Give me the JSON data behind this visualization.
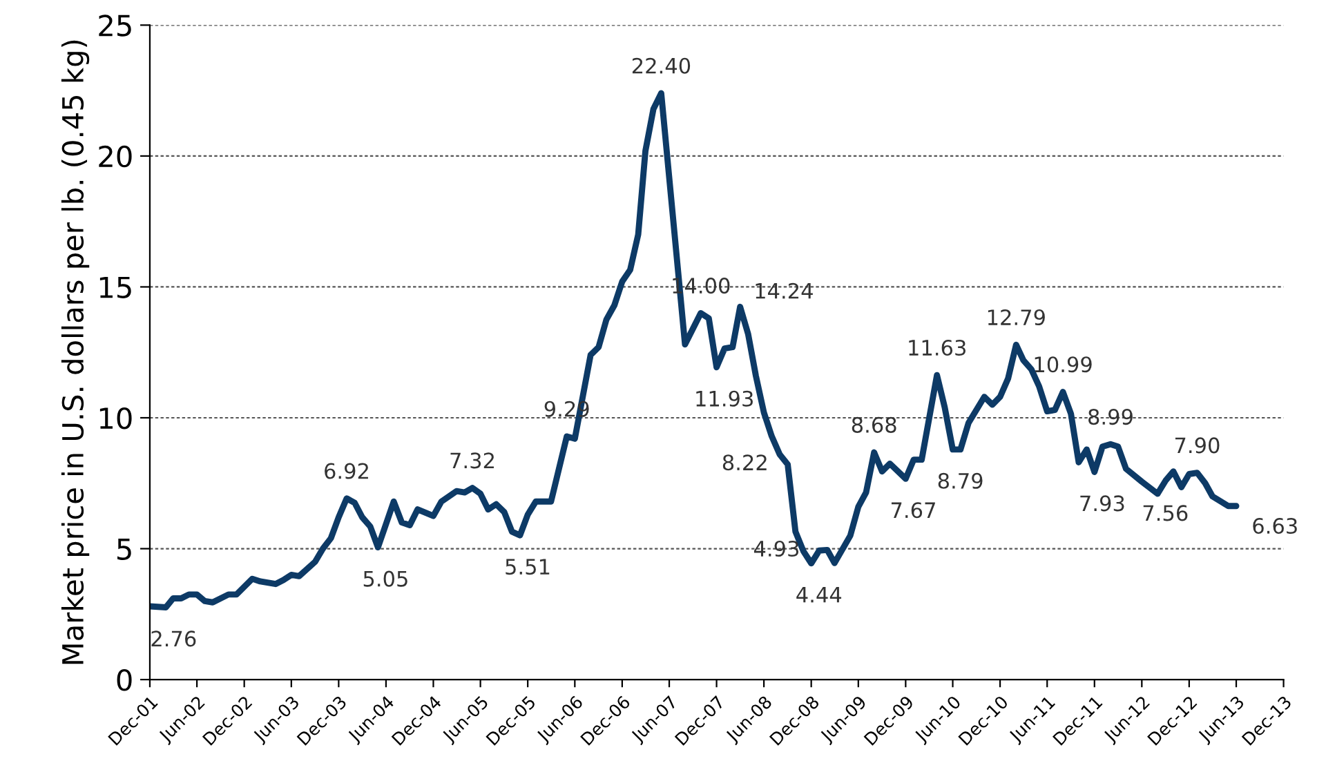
{
  "chart_data": {
    "type": "line",
    "ylabel": "Market price in U.S. dollars per lb. (0.45 kg)",
    "series": [
      {
        "color": "#0d3a66",
        "x": [
          "2001-12",
          "2002-02",
          "2002-03",
          "2002-04",
          "2002-05",
          "2002-06",
          "2002-07",
          "2002-08",
          "2002-10",
          "2002-11",
          "2003-01",
          "2003-02",
          "2003-04",
          "2003-05",
          "2003-06",
          "2003-07",
          "2003-09",
          "2003-10",
          "2003-11",
          "2003-12",
          "2004-01",
          "2004-02",
          "2004-03",
          "2004-04",
          "2004-05",
          "2004-07",
          "2004-08",
          "2004-09",
          "2004-10",
          "2004-12",
          "2005-01",
          "2005-03",
          "2005-04",
          "2005-05",
          "2005-06",
          "2005-07",
          "2005-08",
          "2005-09",
          "2005-10",
          "2005-11",
          "2005-12",
          "2006-01",
          "2006-03",
          "2006-05",
          "2006-06",
          "2006-08",
          "2006-09",
          "2006-10",
          "2006-11",
          "2006-12",
          "2007-01",
          "2007-02",
          "2007-03",
          "2007-04",
          "2007-05",
          "2007-08",
          "2007-10",
          "2007-11",
          "2007-12",
          "2008-01",
          "2008-02",
          "2008-03",
          "2008-04",
          "2008-05",
          "2008-06",
          "2008-07",
          "2008-08",
          "2008-09",
          "2008-10",
          "2008-11",
          "2008-12",
          "2009-01",
          "2009-02",
          "2009-03",
          "2009-05",
          "2009-06",
          "2009-07",
          "2009-08",
          "2009-09",
          "2009-10",
          "2009-12",
          "2010-01",
          "2010-02",
          "2010-04",
          "2010-05",
          "2010-06",
          "2010-07",
          "2010-08",
          "2010-10",
          "2010-11",
          "2010-12",
          "2011-01",
          "2011-02",
          "2011-03",
          "2011-04",
          "2011-05",
          "2011-06",
          "2011-07",
          "2011-08",
          "2011-09",
          "2011-10",
          "2011-11",
          "2011-12",
          "2012-01",
          "2012-02",
          "2012-03",
          "2012-04",
          "2012-06",
          "2012-08",
          "2012-09",
          "2012-10",
          "2012-11",
          "2012-12",
          "2013-01",
          "2013-02",
          "2013-03",
          "2013-05",
          "2013-06"
        ],
        "values": [
          2.8,
          2.76,
          3.1,
          3.1,
          3.25,
          3.25,
          3.0,
          2.95,
          3.25,
          3.25,
          3.85,
          3.75,
          3.65,
          3.8,
          4.0,
          3.95,
          4.5,
          5.0,
          5.4,
          6.2,
          6.92,
          6.75,
          6.2,
          5.85,
          5.05,
          6.8,
          6.0,
          5.9,
          6.5,
          6.25,
          6.8,
          7.2,
          7.15,
          7.32,
          7.1,
          6.5,
          6.7,
          6.4,
          5.65,
          5.51,
          6.3,
          6.8,
          6.8,
          9.29,
          9.2,
          12.4,
          12.7,
          13.75,
          14.3,
          15.2,
          15.65,
          17.0,
          20.2,
          21.8,
          22.4,
          12.8,
          14.0,
          13.8,
          11.93,
          12.65,
          12.7,
          14.24,
          13.2,
          11.6,
          10.2,
          9.3,
          8.6,
          8.22,
          5.65,
          4.9,
          4.44,
          4.93,
          4.95,
          4.45,
          5.5,
          6.6,
          7.15,
          8.68,
          7.95,
          8.25,
          7.67,
          8.4,
          8.4,
          11.63,
          10.4,
          8.79,
          8.79,
          9.8,
          10.8,
          10.5,
          10.8,
          11.5,
          12.79,
          12.2,
          11.85,
          11.2,
          10.25,
          10.3,
          10.99,
          10.15,
          8.3,
          8.79,
          7.93,
          8.9,
          8.99,
          8.9,
          8.05,
          7.56,
          7.1,
          7.6,
          7.95,
          7.35,
          7.85,
          7.9,
          7.5,
          7.0,
          6.63,
          6.63
        ]
      }
    ],
    "annotations": [
      {
        "text": "2.76",
        "x": "2002-02",
        "y": 2.76
      },
      {
        "text": "6.92",
        "x": "2004-01",
        "y": 6.92
      },
      {
        "text": "5.05",
        "x": "2004-05",
        "y": 5.05
      },
      {
        "text": "7.32",
        "x": "2005-05",
        "y": 7.32
      },
      {
        "text": "5.51",
        "x": "2005-11",
        "y": 5.51
      },
      {
        "text": "9.29",
        "x": "2006-05",
        "y": 9.29
      },
      {
        "text": "22.40",
        "x": "2007-05",
        "y": 22.4
      },
      {
        "text": "14.00",
        "x": "2007-10",
        "y": 14.0
      },
      {
        "text": "11.93",
        "x": "2007-12",
        "y": 11.93
      },
      {
        "text": "14.24",
        "x": "2008-03",
        "y": 14.24
      },
      {
        "text": "8.22",
        "x": "2008-09",
        "y": 8.22
      },
      {
        "text": "4.44",
        "x": "2008-12",
        "y": 4.44
      },
      {
        "text": "4.93",
        "x": "2009-01",
        "y": 4.93
      },
      {
        "text": "8.68",
        "x": "2009-08",
        "y": 8.68
      },
      {
        "text": "7.67",
        "x": "2009-12",
        "y": 7.67
      },
      {
        "text": "11.63",
        "x": "2010-04",
        "y": 11.63
      },
      {
        "text": "8.79",
        "x": "2010-06",
        "y": 8.79
      },
      {
        "text": "12.79",
        "x": "2011-02",
        "y": 12.79
      },
      {
        "text": "10.99",
        "x": "2011-08",
        "y": 10.99
      },
      {
        "text": "7.93",
        "x": "2011-12",
        "y": 7.93
      },
      {
        "text": "8.99",
        "x": "2012-02",
        "y": 8.99
      },
      {
        "text": "7.56",
        "x": "2012-08",
        "y": 7.56
      },
      {
        "text": "7.90",
        "x": "2013-01",
        "y": 7.9
      },
      {
        "text": "6.63",
        "x": "2013-06",
        "y": 6.63
      }
    ],
    "xlim": [
      "2001-12",
      "2013-12"
    ],
    "xticks": [
      {
        "value": "2001-12",
        "label": "Dec-01"
      },
      {
        "value": "2002-06",
        "label": "Jun-02"
      },
      {
        "value": "2002-12",
        "label": "Dec-02"
      },
      {
        "value": "2003-06",
        "label": "Jun-03"
      },
      {
        "value": "2003-12",
        "label": "Dec-03"
      },
      {
        "value": "2004-06",
        "label": "Jun-04"
      },
      {
        "value": "2004-12",
        "label": "Dec-04"
      },
      {
        "value": "2005-06",
        "label": "Jun-05"
      },
      {
        "value": "2005-12",
        "label": "Dec-05"
      },
      {
        "value": "2006-06",
        "label": "Jun-06"
      },
      {
        "value": "2006-12",
        "label": "Dec-06"
      },
      {
        "value": "2007-06",
        "label": "Jun-07"
      },
      {
        "value": "2007-12",
        "label": "Dec-07"
      },
      {
        "value": "2008-06",
        "label": "Jun-08"
      },
      {
        "value": "2008-12",
        "label": "Dec-08"
      },
      {
        "value": "2009-06",
        "label": "Jun-09"
      },
      {
        "value": "2009-12",
        "label": "Dec-09"
      },
      {
        "value": "2010-06",
        "label": "Jun-10"
      },
      {
        "value": "2010-12",
        "label": "Dec-10"
      },
      {
        "value": "2011-06",
        "label": "Jun-11"
      },
      {
        "value": "2011-12",
        "label": "Dec-11"
      },
      {
        "value": "2012-06",
        "label": "Jun-12"
      },
      {
        "value": "2012-12",
        "label": "Dec-12"
      },
      {
        "value": "2013-06",
        "label": "Jun-13"
      },
      {
        "value": "2013-12",
        "label": "Dec-13"
      }
    ],
    "ylim": [
      0,
      25
    ],
    "yticks": [
      0,
      5,
      10,
      15,
      20,
      25
    ],
    "grid": "y",
    "marker": "none",
    "line_style": "solid"
  }
}
